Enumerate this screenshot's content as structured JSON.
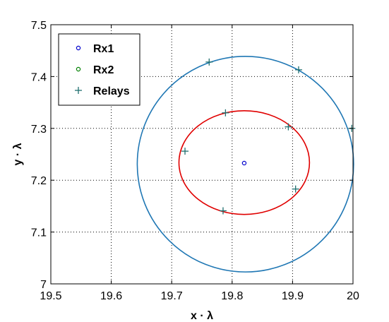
{
  "chart_data": {
    "type": "scatter",
    "xlabel": "x · λ",
    "ylabel": "y · λ",
    "xlim": [
      19.5,
      20.0
    ],
    "ylim": [
      7.0,
      7.5
    ],
    "xticks": [
      "19.5",
      "19.6",
      "19.7",
      "19.8",
      "19.9",
      "20"
    ],
    "yticks": [
      "7",
      "7.1",
      "7.2",
      "7.3",
      "7.4",
      "7.5"
    ],
    "grid": true,
    "legend_position": "top-left",
    "legend": [
      {
        "label": "Rx1",
        "marker": "o",
        "color": "#0000cc"
      },
      {
        "label": "Rx2",
        "marker": "o",
        "color": "#008000"
      },
      {
        "label": "Relays",
        "marker": "+",
        "color": "#1f6f6f"
      }
    ],
    "rx1": {
      "x": 19.82,
      "y": 7.233
    },
    "relays": {
      "x": [
        19.762,
        19.91,
        19.789,
        19.893,
        19.722,
        19.905,
        19.785,
        19.998
      ],
      "y": [
        7.428,
        7.413,
        7.33,
        7.303,
        7.256,
        7.183,
        7.141,
        7.3
      ]
    },
    "circles": [
      {
        "cx": 19.822,
        "cy": 7.231,
        "r": 0.179,
        "ry": 0.208,
        "color": "#1f77b4"
      },
      {
        "cx": 19.82,
        "cy": 7.234,
        "r": 0.108,
        "ry": 0.1,
        "color": "#e00000"
      }
    ]
  }
}
